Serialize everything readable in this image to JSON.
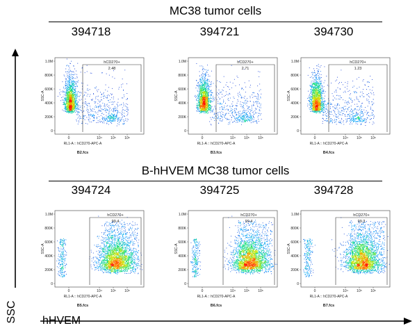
{
  "groups": [
    {
      "title": "MC38 tumor cells",
      "samples": [
        {
          "id": "394718",
          "file": "B2.fcs",
          "gate_value": "2.48",
          "dist": "neg"
        },
        {
          "id": "394721",
          "file": "B3.fcs",
          "gate_value": "2.71",
          "dist": "neg"
        },
        {
          "id": "394730",
          "file": "B4.fcs",
          "gate_value": "1.23",
          "dist": "neg"
        }
      ]
    },
    {
      "title": "B-hHVEM MC38 tumor cells",
      "samples": [
        {
          "id": "394724",
          "file": "B5.fcs",
          "gate_value": "99.4",
          "dist": "pos"
        },
        {
          "id": "394725",
          "file": "B6.fcs",
          "gate_value": "99.4",
          "dist": "pos"
        },
        {
          "id": "394728",
          "file": "B7.fcs",
          "gate_value": "99.3",
          "dist": "pos"
        }
      ]
    }
  ],
  "gate_name": "hCD270+",
  "x_axis_label": "RL1-A :: hCD270-APC-A",
  "y_axis_label": "SSC-A",
  "y_ticks": [
    "0",
    "200K",
    "400K",
    "600K",
    "800K",
    "1.0M"
  ],
  "x_ticks": [
    "0",
    "10⁴",
    "10⁵",
    "10⁶"
  ],
  "big_x_label": "hHVEM",
  "big_y_label": "SSC",
  "colors": {
    "low": "#1010c8",
    "mid": "#00c8ff",
    "high": "#ff2000"
  },
  "chart_data": {
    "type": "scatter",
    "x_label": "RL1-A :: hCD270-APC-A",
    "y_label": "SSC-A",
    "gate_percent_hCD270_positive": {
      "394718": 2.48,
      "394721": 2.71,
      "394730": 1.23,
      "394724": 99.4,
      "394725": 99.4,
      "394728": 99.3
    }
  }
}
